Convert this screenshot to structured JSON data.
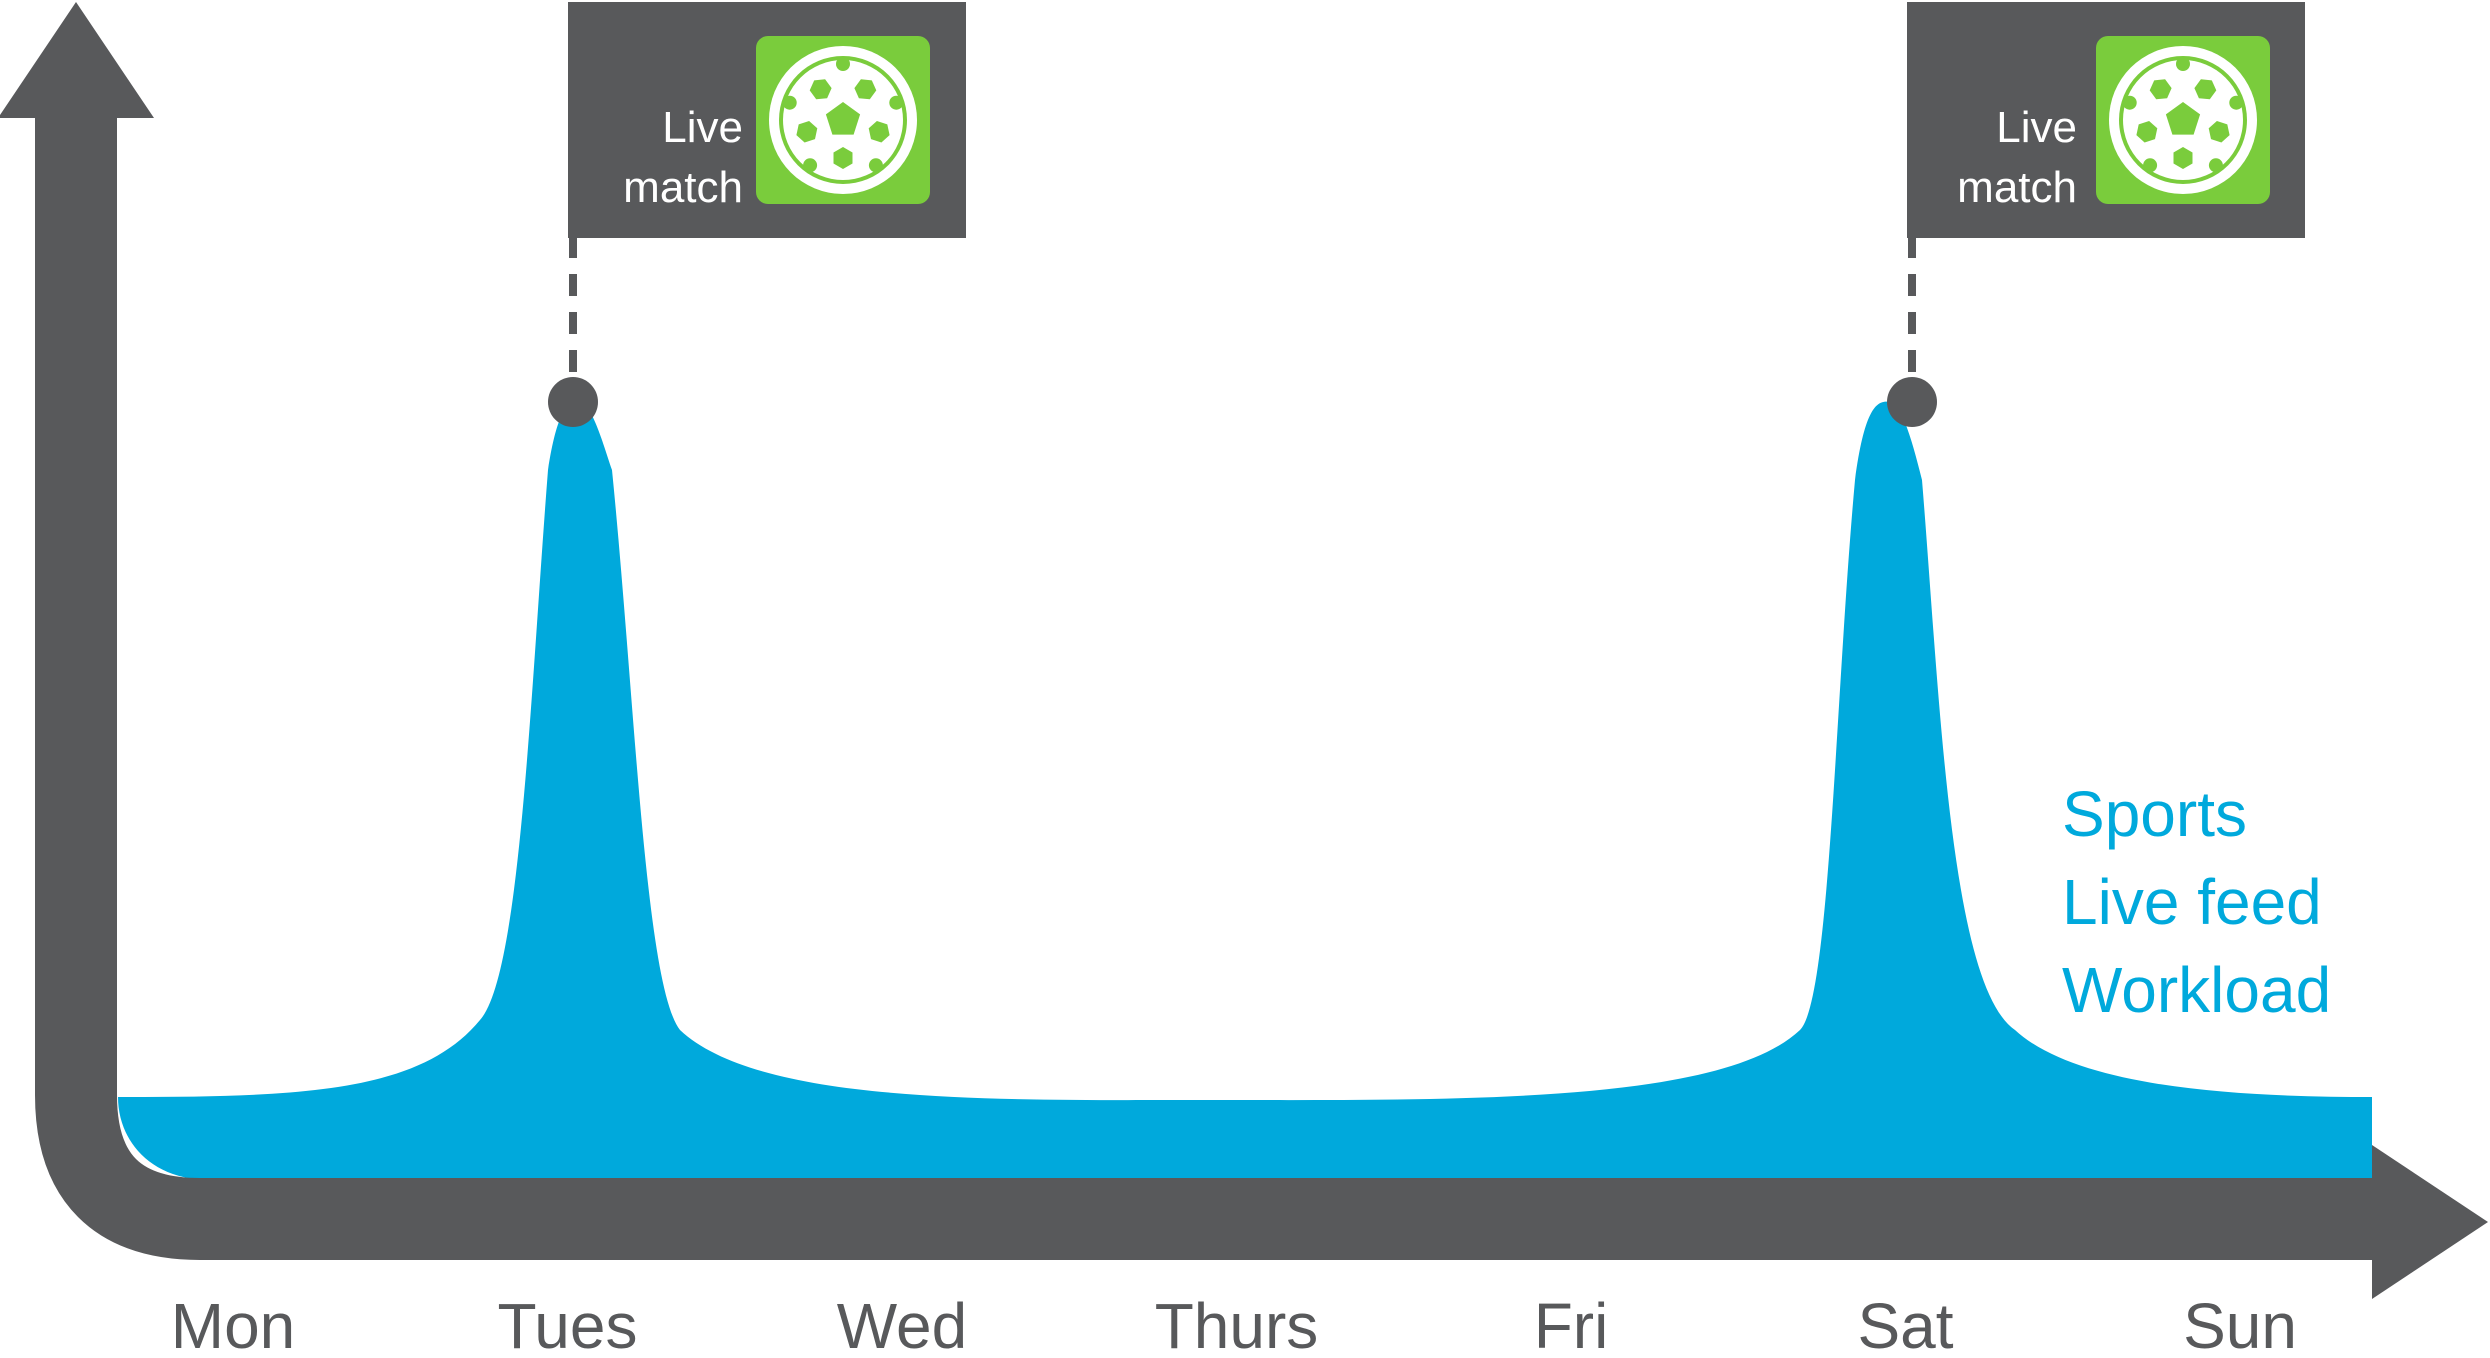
{
  "chart_data": {
    "type": "area",
    "categories": [
      "Mon",
      "Tues",
      "Wed",
      "Thurs",
      "Fri",
      "Sat",
      "Sun"
    ],
    "series": [
      {
        "name": "Sports Live feed Workload",
        "label_lines": [
          "Sports",
          "Live feed",
          "Workload"
        ]
      }
    ],
    "peaks": [
      {
        "day": "Tues",
        "annotation_lines": [
          "Live",
          "match"
        ],
        "icon": "soccer-ball-icon"
      },
      {
        "day": "Sat",
        "annotation_lines": [
          "Live",
          "match"
        ],
        "icon": "soccer-ball-icon"
      }
    ],
    "grid": false
  },
  "colors": {
    "axis": "#58595b",
    "area": "#00a9dc",
    "flag": "#58595b",
    "flag_text": "#ffffff",
    "icon_bg": "#7acc3c",
    "label": "#00a9dc",
    "day_label": "#58595b"
  }
}
